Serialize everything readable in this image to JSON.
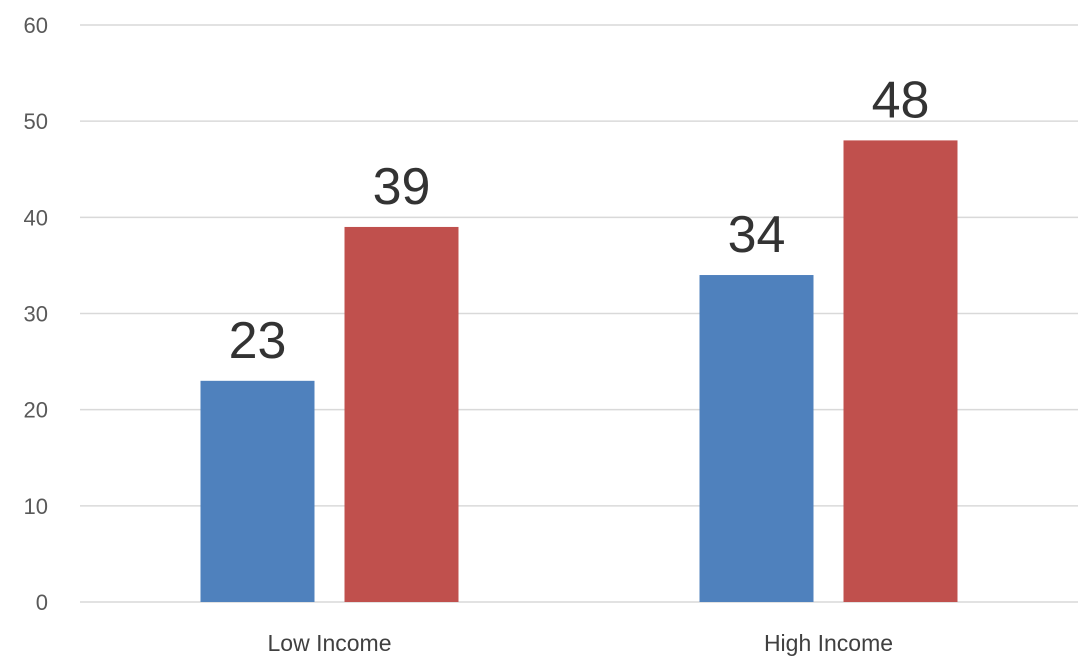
{
  "chart_data": {
    "type": "bar",
    "categories": [
      "Low Income",
      "High Income"
    ],
    "series": [
      {
        "values": [
          23,
          34
        ],
        "color": "#4f81bd"
      },
      {
        "values": [
          39,
          48
        ],
        "color": "#c0504d"
      }
    ],
    "ylim": [
      0,
      60
    ],
    "yticks": [
      0,
      10,
      20,
      30,
      40,
      50,
      60
    ],
    "data_labels": true,
    "grid": true,
    "legend": "none"
  }
}
